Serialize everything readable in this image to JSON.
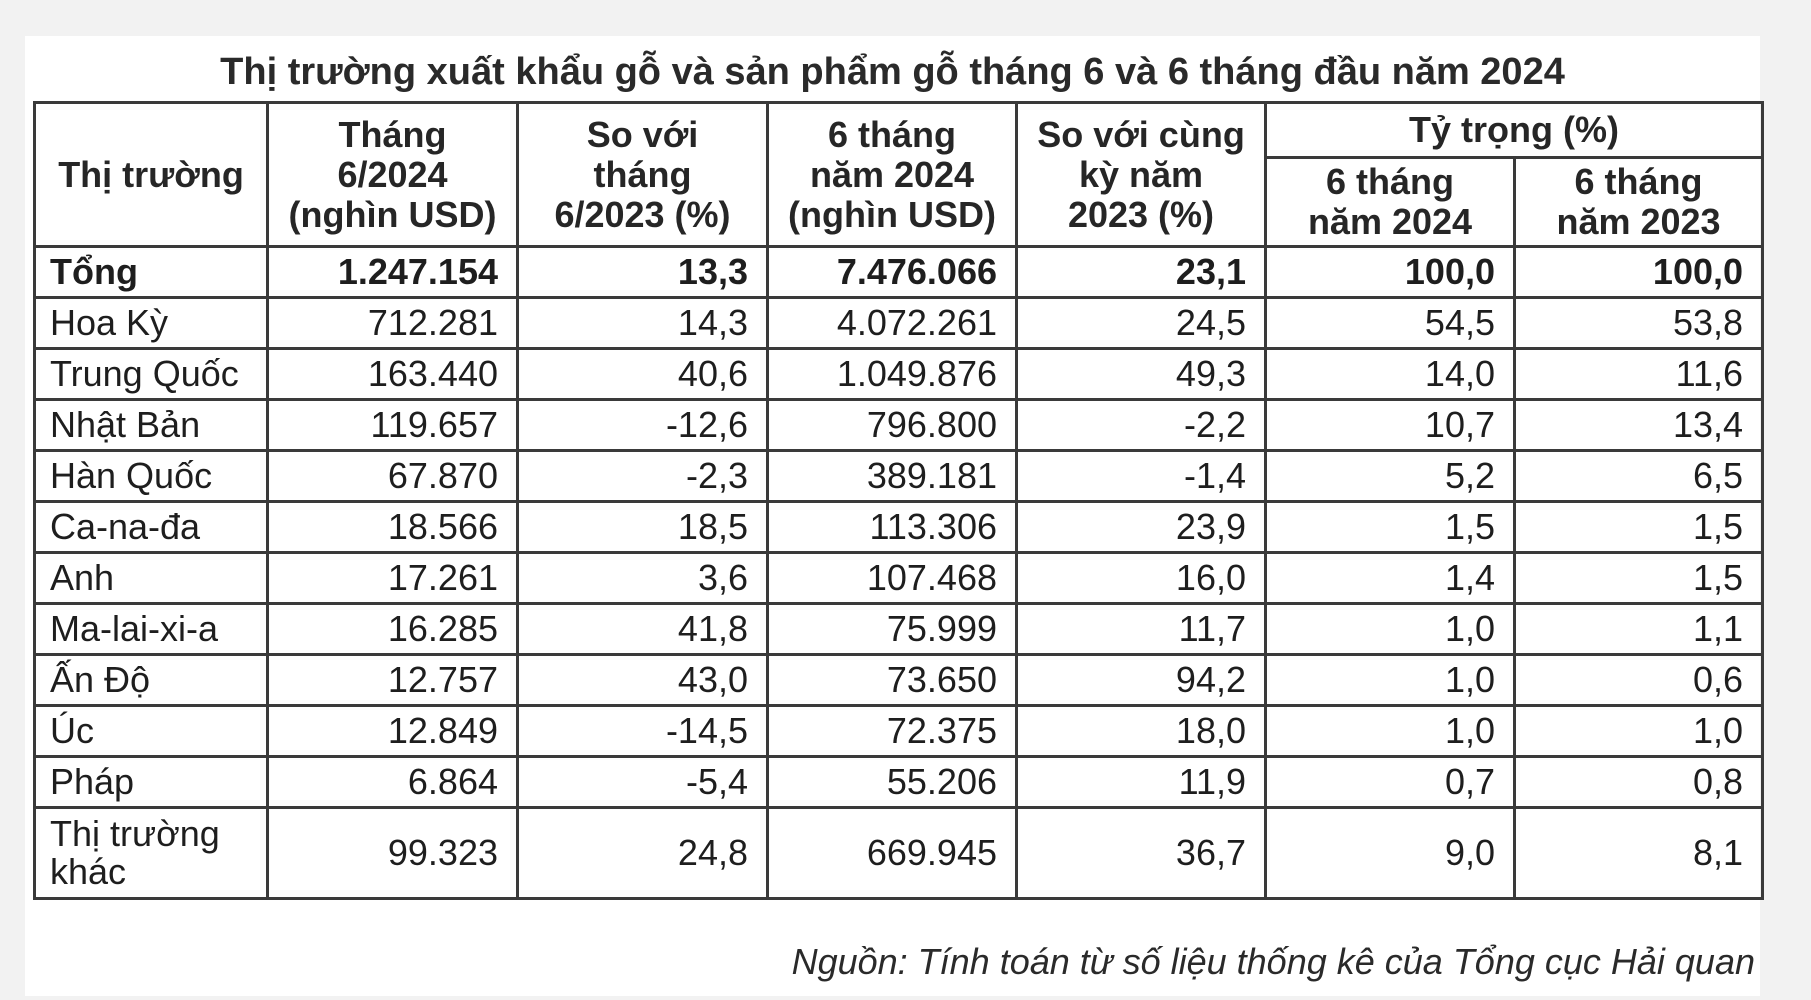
{
  "title": "Thị trường xuất khẩu gỗ và sản phẩm gỗ tháng 6 và 6 tháng đầu năm 2024",
  "headers": {
    "market": "Thị trường",
    "june2024": "Tháng 6/2024 (nghìn USD)",
    "vs_june2023": "So với tháng 6/2023 (%)",
    "six_months_2024": "6 tháng năm 2024 (nghìn USD)",
    "vs_same_period_2023": "So với cùng kỳ năm 2023 (%)",
    "share": "Tỷ trọng (%)",
    "share_2024": "6 tháng năm 2024",
    "share_2023": "6 tháng năm 2023"
  },
  "rows": [
    {
      "market": "Tổng",
      "june2024": "1.247.154",
      "vs_june2023": "13,3",
      "six_months_2024": "7.476.066",
      "vs_same_period_2023": "23,1",
      "share_2024": "100,0",
      "share_2023": "100,0"
    },
    {
      "market": "Hoa Kỳ",
      "june2024": "712.281",
      "vs_june2023": "14,3",
      "six_months_2024": "4.072.261",
      "vs_same_period_2023": "24,5",
      "share_2024": "54,5",
      "share_2023": "53,8"
    },
    {
      "market": "Trung Quốc",
      "june2024": "163.440",
      "vs_june2023": "40,6",
      "six_months_2024": "1.049.876",
      "vs_same_period_2023": "49,3",
      "share_2024": "14,0",
      "share_2023": "11,6"
    },
    {
      "market": "Nhật Bản",
      "june2024": "119.657",
      "vs_june2023": "-12,6",
      "six_months_2024": "796.800",
      "vs_same_period_2023": "-2,2",
      "share_2024": "10,7",
      "share_2023": "13,4"
    },
    {
      "market": "Hàn Quốc",
      "june2024": "67.870",
      "vs_june2023": "-2,3",
      "six_months_2024": "389.181",
      "vs_same_period_2023": "-1,4",
      "share_2024": "5,2",
      "share_2023": "6,5"
    },
    {
      "market": "Ca-na-đa",
      "june2024": "18.566",
      "vs_june2023": "18,5",
      "six_months_2024": "113.306",
      "vs_same_period_2023": "23,9",
      "share_2024": "1,5",
      "share_2023": "1,5"
    },
    {
      "market": "Anh",
      "june2024": "17.261",
      "vs_june2023": "3,6",
      "six_months_2024": "107.468",
      "vs_same_period_2023": "16,0",
      "share_2024": "1,4",
      "share_2023": "1,5"
    },
    {
      "market": "Ma-lai-xi-a",
      "june2024": "16.285",
      "vs_june2023": "41,8",
      "six_months_2024": "75.999",
      "vs_same_period_2023": "11,7",
      "share_2024": "1,0",
      "share_2023": "1,1"
    },
    {
      "market": "Ấn Độ",
      "june2024": "12.757",
      "vs_june2023": "43,0",
      "six_months_2024": "73.650",
      "vs_same_period_2023": "94,2",
      "share_2024": "1,0",
      "share_2023": "0,6"
    },
    {
      "market": "Úc",
      "june2024": "12.849",
      "vs_june2023": "-14,5",
      "six_months_2024": "72.375",
      "vs_same_period_2023": "18,0",
      "share_2024": "1,0",
      "share_2023": "1,0"
    },
    {
      "market": "Pháp",
      "june2024": "6.864",
      "vs_june2023": "-5,4",
      "six_months_2024": "55.206",
      "vs_same_period_2023": "11,9",
      "share_2024": "0,7",
      "share_2023": "0,8"
    },
    {
      "market": "Thị trường khác",
      "june2024": "99.323",
      "vs_june2023": "24,8",
      "six_months_2024": "669.945",
      "vs_same_period_2023": "36,7",
      "share_2024": "9,0",
      "share_2023": "8,1"
    }
  ],
  "source": "Nguồn: Tính toán từ số liệu thống kê của Tổng cục Hải quan"
}
